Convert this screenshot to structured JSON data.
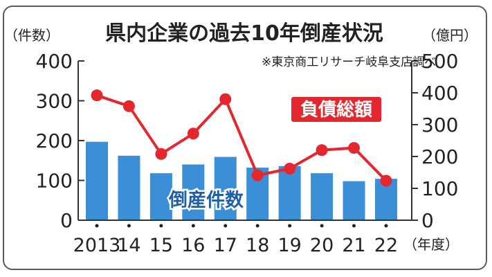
{
  "chart_data": {
    "type": "bar+line",
    "title": "県内企業の過去10年倒産状況",
    "source": "※東京商工リサーチ岐阜支店調べ",
    "left_axis_unit": "（件数）",
    "right_axis_unit": "（億円）",
    "x_unit": "（年度）",
    "categories": [
      "2013",
      "14",
      "15",
      "16",
      "17",
      "18",
      "19",
      "20",
      "21",
      "22"
    ],
    "left_ticks": [
      "0",
      "100",
      "200",
      "300",
      "400"
    ],
    "right_ticks": [
      "0",
      "100",
      "200",
      "300",
      "400",
      "500"
    ],
    "left_ylim": [
      0,
      400
    ],
    "right_ylim": [
      0,
      500
    ],
    "grid": false,
    "series": [
      {
        "name": "倒産件数",
        "kind": "bar",
        "axis": "left",
        "color": "#3a8fd6",
        "values": [
          197,
          162,
          118,
          140,
          159,
          132,
          136,
          118,
          98,
          104
        ]
      },
      {
        "name": "負債総額",
        "kind": "line",
        "axis": "right",
        "color": "#e4272f",
        "values": [
          392,
          358,
          208,
          272,
          380,
          141,
          162,
          220,
          227,
          124
        ]
      }
    ]
  }
}
